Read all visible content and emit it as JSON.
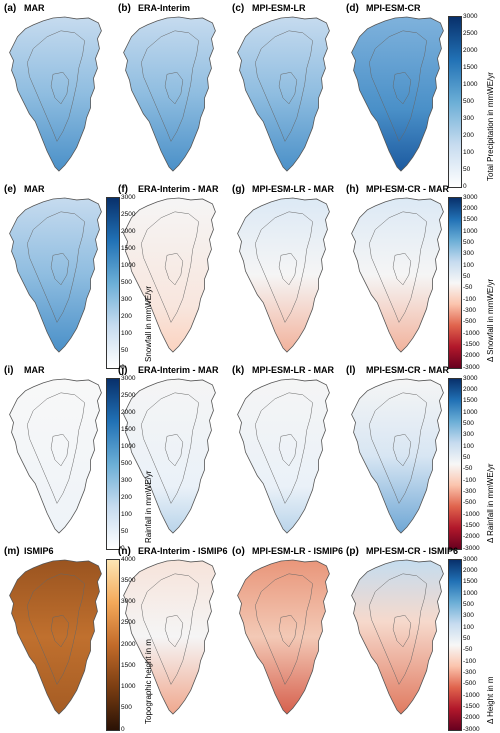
{
  "rows": [
    {
      "panels": [
        {
          "label": "(a)",
          "title": "MAR",
          "style": "precip"
        },
        {
          "label": "(b)",
          "title": "ERA-Interim",
          "style": "precip"
        },
        {
          "label": "(c)",
          "title": "MPI-ESM-LR",
          "style": "precip"
        },
        {
          "label": "(d)",
          "title": "MPI-ESM-CR",
          "style": "precip_strong"
        }
      ],
      "colorbar": {
        "label": "Total Precipitation in mmWE/yr",
        "ticks": [
          "3000",
          "2500",
          "2000",
          "1500",
          "1000",
          "500",
          "300",
          "200",
          "100",
          "50",
          "0"
        ],
        "scale": "blues"
      }
    },
    {
      "panels": [
        {
          "label": "(e)",
          "title": "MAR",
          "style": "precip"
        },
        {
          "label": "(f)",
          "title": "ERA-Interim - MAR",
          "style": "diff_light"
        },
        {
          "label": "(g)",
          "title": "MPI-ESM-LR - MAR",
          "style": "diff_mixed"
        },
        {
          "label": "(h)",
          "title": "MPI-ESM-CR - MAR",
          "style": "diff_mixed"
        }
      ],
      "colorbar_left": {
        "label": "Snowfall in mmWE/yr",
        "ticks": [
          "3000",
          "2500",
          "2000",
          "1500",
          "1000",
          "500",
          "300",
          "200",
          "100",
          "50",
          "0"
        ],
        "scale": "blues"
      },
      "colorbar": {
        "label": "Δ Snowfall in mmWE/yr",
        "ticks": [
          "3000",
          "2000",
          "1500",
          "1000",
          "500",
          "300",
          "100",
          "50",
          "-50",
          "-100",
          "-300",
          "-500",
          "-1000",
          "-1500",
          "-2000",
          "-3000"
        ],
        "scale": "diverging"
      }
    },
    {
      "panels": [
        {
          "label": "(i)",
          "title": "MAR",
          "style": "rain"
        },
        {
          "label": "(j)",
          "title": "ERA-Interim - MAR",
          "style": "rain_diff"
        },
        {
          "label": "(k)",
          "title": "MPI-ESM-LR - MAR",
          "style": "rain_diff"
        },
        {
          "label": "(l)",
          "title": "MPI-ESM-CR - MAR",
          "style": "rain_diff_strong"
        }
      ],
      "colorbar_left": {
        "label": "Rainfall in mmWE/yr",
        "ticks": [
          "3000",
          "2500",
          "2000",
          "1500",
          "1000",
          "500",
          "300",
          "200",
          "100",
          "50",
          "0"
        ],
        "scale": "blues"
      },
      "colorbar": {
        "label": "Δ Rainfall in mmWE/yr",
        "ticks": [
          "3000",
          "2000",
          "1500",
          "1000",
          "500",
          "300",
          "100",
          "50",
          "-50",
          "-100",
          "-300",
          "-500",
          "-1000",
          "-1500",
          "-2000",
          "-3000"
        ],
        "scale": "diverging"
      }
    },
    {
      "panels": [
        {
          "label": "(m)",
          "title": "ISMIP6",
          "style": "topo"
        },
        {
          "label": "(n)",
          "title": "ERA-Interim - ISMIP6",
          "style": "hdiff_light"
        },
        {
          "label": "(o)",
          "title": "MPI-ESM-LR - ISMIP6",
          "style": "hdiff_strong"
        },
        {
          "label": "(p)",
          "title": "MPI-ESM-CR - ISMIP6",
          "style": "hdiff_mixed"
        }
      ],
      "colorbar_left": {
        "label": "Topographic height in m",
        "ticks": [
          "4000",
          "3500",
          "3000",
          "2500",
          "2000",
          "1500",
          "1000",
          "500",
          "0"
        ],
        "scale": "oranges"
      },
      "colorbar": {
        "label": "Δ Height in m",
        "ticks": [
          "3000",
          "2000",
          "1500",
          "1000",
          "500",
          "300",
          "100",
          "50",
          "-50",
          "-100",
          "-300",
          "-500",
          "-1000",
          "-1500",
          "-2000",
          "-3000"
        ],
        "scale": "diverging"
      }
    }
  ],
  "colors": {
    "ocean": "#ffffff",
    "coast": "#555555",
    "blue_dark": "#08306b",
    "blue_mid": "#4a90c8",
    "blue_light": "#c6dbef",
    "red_dark": "#67001f",
    "red_mid": "#d6604d",
    "red_light": "#fbd3c0",
    "neutral": "#f5f5f5",
    "orange_dark": "#3b1d06",
    "orange_mid": "#c0702e",
    "orange_light": "#fde1b0"
  }
}
